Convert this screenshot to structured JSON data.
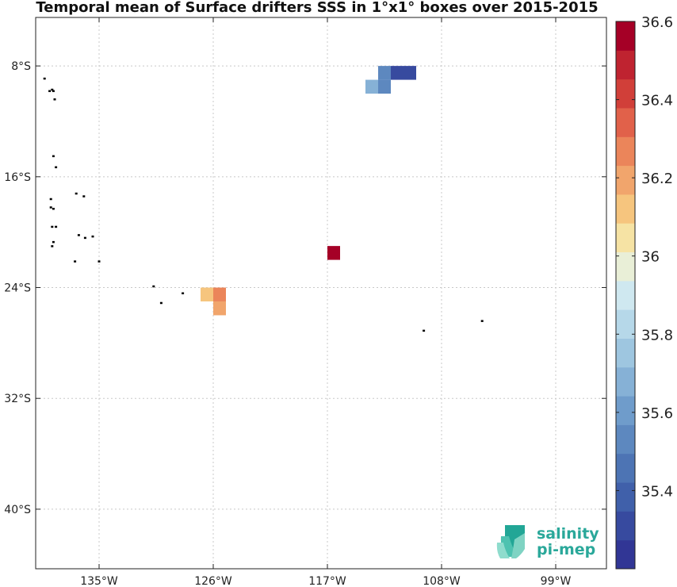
{
  "chart_data": {
    "type": "heatmap",
    "title": "Temporal mean of Surface drifters SSS in 1°x1° boxes over 2015-2015",
    "x_axis": {
      "range": [
        -140,
        -95
      ],
      "ticks": [
        -135,
        -126,
        -117,
        -108,
        -99
      ],
      "tick_labels": [
        "135°W",
        "126°W",
        "117°W",
        "108°W",
        "99°W"
      ]
    },
    "y_axis": {
      "range": [
        -44.3,
        -4.5
      ],
      "ticks": [
        -8,
        -16,
        -24,
        -32,
        -40
      ],
      "tick_labels": [
        "8°S",
        "16°S",
        "24°S",
        "32°S",
        "40°S"
      ]
    },
    "grid": true,
    "colorbar": {
      "range": [
        35.2,
        36.6
      ],
      "ticks": [
        35.4,
        35.6,
        35.8,
        36.0,
        36.2,
        36.4,
        36.6
      ],
      "tick_labels": [
        "35.4",
        "35.6",
        "35.8",
        "36",
        "36.2",
        "36.4",
        "36.6"
      ],
      "colors": [
        "#313695",
        "#374a9f",
        "#4060aa",
        "#4d74b4",
        "#5d88bf",
        "#6f9ccb",
        "#86b1d6",
        "#9ec6e0",
        "#b6d8e9",
        "#cfe8f0",
        "#e9efd7",
        "#f6e3a4",
        "#f6c57e",
        "#f1a56c",
        "#eb855a",
        "#e1614a",
        "#d13f39",
        "#bf2330",
        "#a50026"
      ]
    },
    "cells": [
      {
        "lon": -112.5,
        "lat": -8.5,
        "value": 35.52
      },
      {
        "lon": -111.5,
        "lat": -8.5,
        "value": 35.3
      },
      {
        "lon": -110.5,
        "lat": -8.5,
        "value": 35.3
      },
      {
        "lon": -113.5,
        "lat": -9.5,
        "value": 35.66
      },
      {
        "lon": -112.5,
        "lat": -9.5,
        "value": 35.55
      },
      {
        "lon": -116.5,
        "lat": -21.5,
        "value": 36.55
      },
      {
        "lon": -126.5,
        "lat": -24.5,
        "value": 36.12
      },
      {
        "lon": -125.5,
        "lat": -24.5,
        "value": 36.27
      },
      {
        "lon": -125.5,
        "lat": -25.5,
        "value": 36.17
      }
    ],
    "islands": [
      {
        "lon": -139.3,
        "lat": -8.9
      },
      {
        "lon": -138.7,
        "lat": -9.7
      },
      {
        "lon": -138.6,
        "lat": -9.8
      },
      {
        "lon": -138.9,
        "lat": -9.8
      },
      {
        "lon": -138.5,
        "lat": -10.4
      },
      {
        "lon": -138.6,
        "lat": -14.5
      },
      {
        "lon": -138.4,
        "lat": -15.3
      },
      {
        "lon": -136.8,
        "lat": -17.2
      },
      {
        "lon": -136.2,
        "lat": -17.4
      },
      {
        "lon": -138.8,
        "lat": -17.6
      },
      {
        "lon": -138.6,
        "lat": -18.3
      },
      {
        "lon": -138.8,
        "lat": -18.2
      },
      {
        "lon": -138.7,
        "lat": -19.6
      },
      {
        "lon": -138.4,
        "lat": -19.6
      },
      {
        "lon": -136.6,
        "lat": -20.2
      },
      {
        "lon": -136.1,
        "lat": -20.4
      },
      {
        "lon": -135.5,
        "lat": -20.3
      },
      {
        "lon": -138.6,
        "lat": -20.7
      },
      {
        "lon": -138.7,
        "lat": -21.0
      },
      {
        "lon": -136.9,
        "lat": -22.1
      },
      {
        "lon": -135.0,
        "lat": -22.1
      },
      {
        "lon": -130.7,
        "lat": -23.9
      },
      {
        "lon": -128.4,
        "lat": -24.4
      },
      {
        "lon": -130.1,
        "lat": -25.1
      },
      {
        "lon": -125.6,
        "lat": -24.6
      },
      {
        "lon": -109.4,
        "lat": -27.1
      },
      {
        "lon": -104.8,
        "lat": -26.4
      }
    ]
  },
  "logo": {
    "line1": "salinity",
    "line2": "pi-mep"
  }
}
